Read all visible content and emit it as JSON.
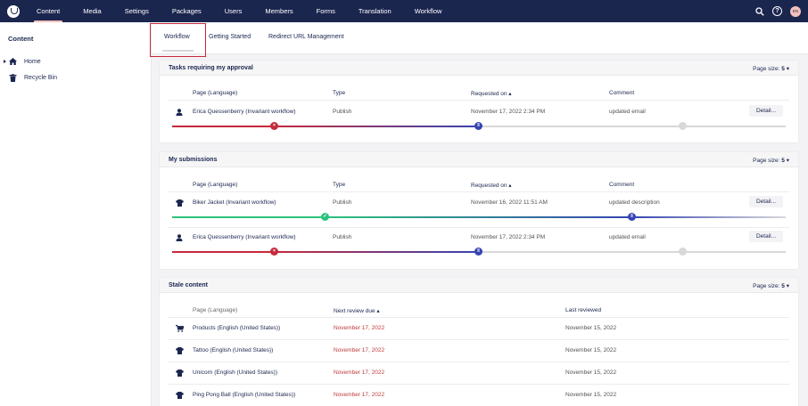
{
  "nav": {
    "items": [
      "Content",
      "Media",
      "Settings",
      "Packages",
      "Users",
      "Members",
      "Forms",
      "Translation",
      "Workflow"
    ],
    "active": "Content",
    "user_initials": "EN",
    "help_glyph": "?",
    "icons": [
      "search-icon",
      "help-icon",
      "avatar"
    ]
  },
  "sidebar": {
    "title": "Content",
    "items": [
      {
        "label": "Home",
        "icon": "home-icon"
      },
      {
        "label": "Recycle Bin",
        "icon": "trash-icon"
      }
    ]
  },
  "tabs": [
    "Workflow",
    "Getting Started",
    "Redirect URL Management"
  ],
  "active_tab": "Workflow",
  "approval": {
    "title": "Tasks requiring my approval",
    "page_size_label": "Page size:",
    "page_size": "5",
    "columns": [
      "Page (Language)",
      "Type",
      "Requested on",
      "Comment"
    ],
    "rows": [
      {
        "page": "Erica Quessenberry (Invariant workflow)",
        "type": "Publish",
        "requested": "November 17, 2022 2:34 PM",
        "comment": "updated email",
        "action": "Detail...",
        "icon": "user-icon"
      }
    ]
  },
  "submissions": {
    "title": "My submissions",
    "page_size_label": "Page size:",
    "page_size": "5",
    "columns": [
      "Page (Language)",
      "Type",
      "Requested on",
      "Comment"
    ],
    "rows": [
      {
        "page": "Biker Jacket (Invariant workflow)",
        "type": "Publish",
        "requested": "November 16, 2022 11:51 AM",
        "comment": "updated description",
        "action": "Detail...",
        "icon": "shirt-icon"
      },
      {
        "page": "Erica Quessenberry (Invariant workflow)",
        "type": "Publish",
        "requested": "November 17, 2022 2:34 PM",
        "comment": "updated email",
        "action": "Detail...",
        "icon": "user-icon"
      }
    ]
  },
  "stale": {
    "title": "Stale content",
    "page_size_label": "Page size:",
    "page_size": "5",
    "columns": [
      "Page (Language)",
      "Next review due",
      "Last reviewed"
    ],
    "rows": [
      {
        "page": "Products (English (United States))",
        "due": "November 17, 2022",
        "reviewed": "November 15, 2022",
        "icon": "cart-icon"
      },
      {
        "page": "Tattoo (English (United States))",
        "due": "November 17, 2022",
        "reviewed": "November 15, 2022",
        "icon": "shirt-icon"
      },
      {
        "page": "Unicorn (English (United States))",
        "due": "November 17, 2022",
        "reviewed": "November 15, 2022",
        "icon": "shirt-icon"
      },
      {
        "page": "Ping Pong Ball (English (United States))",
        "due": "November 17, 2022",
        "reviewed": "November 15, 2022",
        "icon": "shirt-icon"
      }
    ]
  },
  "colors": {
    "header": "#1b264f",
    "rejected": "#c6293b",
    "approved": "#2bc37c",
    "pending": "#3544b1",
    "inactive": "#d8d7d9",
    "overdue": "#c0393b"
  }
}
